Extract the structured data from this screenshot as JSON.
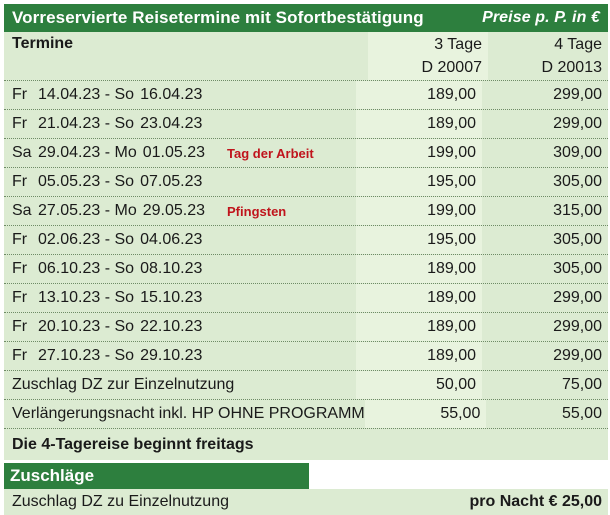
{
  "table": {
    "title": "Vorreservierte Reisetermine mit Sofortbestätigung",
    "price_note": "Preise p. P. in €",
    "col_dates": "Termine",
    "col_3": {
      "label": "3 Tage",
      "code": "D 20007"
    },
    "col_4": {
      "label": "4 Tage",
      "code": "D 20013"
    },
    "rows": [
      {
        "wd1": "Fr",
        "d1": "14.04.23",
        "wd2": "So",
        "d2": "16.04.23",
        "note": "",
        "p3": "189,00",
        "p4": "299,00"
      },
      {
        "wd1": "Fr",
        "d1": "21.04.23",
        "wd2": "So",
        "d2": "23.04.23",
        "note": "",
        "p3": "189,00",
        "p4": "299,00"
      },
      {
        "wd1": "Sa",
        "d1": "29.04.23",
        "wd2": "Mo",
        "d2": "01.05.23",
        "note": "Tag der Arbeit",
        "p3": "199,00",
        "p4": "309,00"
      },
      {
        "wd1": "Fr",
        "d1": "05.05.23",
        "wd2": "So",
        "d2": "07.05.23",
        "note": "",
        "p3": "195,00",
        "p4": "305,00"
      },
      {
        "wd1": "Sa",
        "d1": "27.05.23",
        "wd2": "Mo",
        "d2": "29.05.23",
        "note": "Pfingsten",
        "p3": "199,00",
        "p4": "315,00"
      },
      {
        "wd1": "Fr",
        "d1": "02.06.23",
        "wd2": "So",
        "d2": "04.06.23",
        "note": "",
        "p3": "195,00",
        "p4": "305,00"
      },
      {
        "wd1": "Fr",
        "d1": "06.10.23",
        "wd2": "So",
        "d2": "08.10.23",
        "note": "",
        "p3": "189,00",
        "p4": "305,00"
      },
      {
        "wd1": "Fr",
        "d1": "13.10.23",
        "wd2": "So",
        "d2": "15.10.23",
        "note": "",
        "p3": "189,00",
        "p4": "299,00"
      },
      {
        "wd1": "Fr",
        "d1": "20.10.23",
        "wd2": "So",
        "d2": "22.10.23",
        "note": "",
        "p3": "189,00",
        "p4": "299,00"
      },
      {
        "wd1": "Fr",
        "d1": "27.10.23",
        "wd2": "So",
        "d2": "29.10.23",
        "note": "",
        "p3": "189,00",
        "p4": "299,00"
      }
    ],
    "extras": [
      {
        "label": "Zuschlag DZ zur Einzelnutzung",
        "p3": "50,00",
        "p4": "75,00"
      },
      {
        "label": "Verlängerungsnacht inkl. HP OHNE PROGRAMM",
        "p3": "55,00",
        "p4": "55,00"
      }
    ],
    "footnote": "Die 4-Tagereise beginnt freitags"
  },
  "surcharges": {
    "title": "Zuschläge",
    "label": "Zuschlag DZ zu Einzelnutzung",
    "price": "pro Nacht € 25,00"
  },
  "colors": {
    "header_green": "#2d7f3e",
    "row_bg": "#dcebd2",
    "note_red": "#c0141c"
  }
}
